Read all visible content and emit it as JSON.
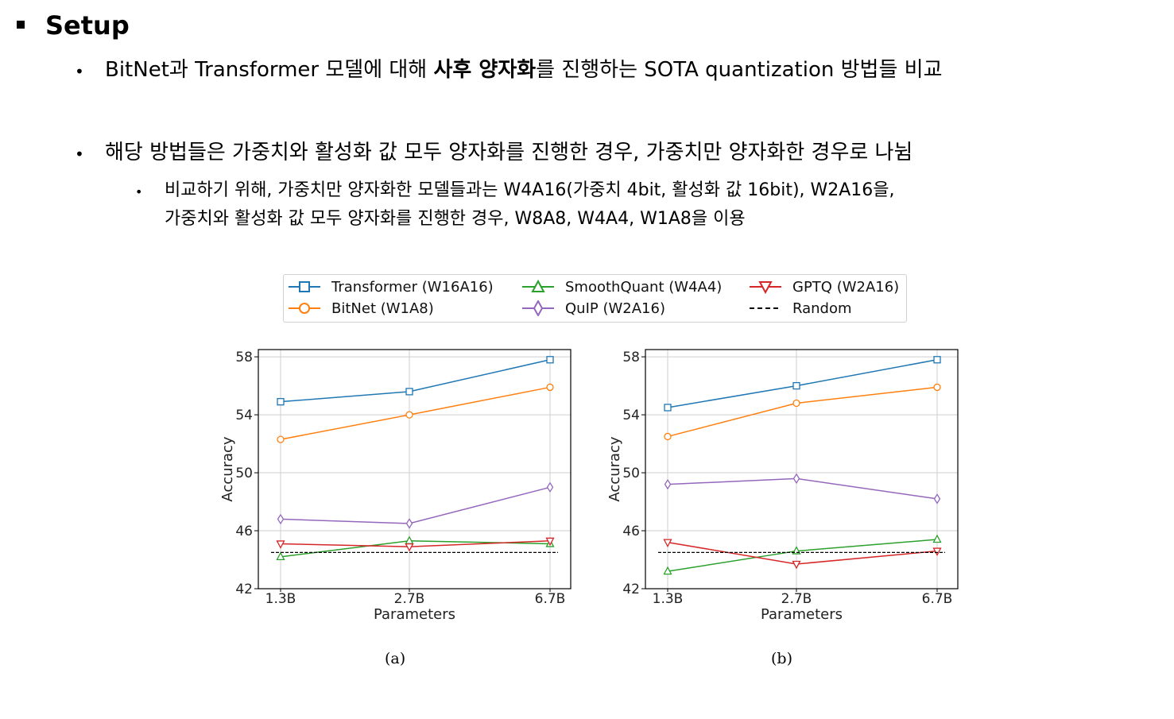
{
  "slide": {
    "heading": "Setup",
    "bullet1_pre": "BitNet과 Transformer 모델에 대해 ",
    "bullet1_bold": "사후 양자화",
    "bullet1_post": "를 진행하는 SOTA quantization 방법들 비교",
    "bullet2": "해당 방법들은 가중치와 활성화 값 모두 양자화를 진행한 경우, 가중치만 양자화한 경우로 나뉨",
    "sub_line1": "비교하기 위해, 가중치만 양자화한 모델들과는 W4A16(가중치 4bit, 활성화 값 16bit), W2A16을,",
    "sub_line2": "가중치와 활성화 값 모두 양자화를 진행한 경우, W8A8, W4A4, W1A8을 이용"
  },
  "legend": [
    {
      "label": "Transformer (W16A16)",
      "color": "#1f77b4",
      "marker": "square"
    },
    {
      "label": "BitNet (W1A8)",
      "color": "#ff7f0e",
      "marker": "circle"
    },
    {
      "label": "SmoothQuant (W4A4)",
      "color": "#2ca02c",
      "marker": "triangle-up"
    },
    {
      "label": "QuIP (W2A16)",
      "color": "#9467bd",
      "marker": "diamond"
    },
    {
      "label": "GPTQ (W2A16)",
      "color": "#d62728",
      "marker": "triangle-down"
    },
    {
      "label": "Random",
      "color": "#000000",
      "marker": "dashed"
    }
  ],
  "chart_data": [
    {
      "type": "line",
      "caption": "(a)",
      "xlabel": "Parameters",
      "ylabel": "Accuracy",
      "categories": [
        "1.3B",
        "2.7B",
        "6.7B"
      ],
      "ylim": [
        42,
        58.5
      ],
      "yticks": [
        "42",
        "46",
        "50",
        "54",
        "58"
      ],
      "grid": true,
      "series": [
        {
          "name": "Transformer (W16A16)",
          "values": [
            54.9,
            55.6,
            57.8
          ]
        },
        {
          "name": "BitNet (W1A8)",
          "values": [
            52.3,
            54.0,
            55.9
          ]
        },
        {
          "name": "SmoothQuant (W4A4)",
          "values": [
            44.2,
            45.3,
            45.1
          ]
        },
        {
          "name": "QuIP (W2A16)",
          "values": [
            46.8,
            46.5,
            49.0
          ]
        },
        {
          "name": "GPTQ (W2A16)",
          "values": [
            45.1,
            44.9,
            45.3
          ]
        },
        {
          "name": "Random",
          "values": [
            44.5,
            44.5,
            44.5
          ]
        }
      ]
    },
    {
      "type": "line",
      "caption": "(b)",
      "xlabel": "Parameters",
      "ylabel": "Accuracy",
      "categories": [
        "1.3B",
        "2.7B",
        "6.7B"
      ],
      "ylim": [
        42,
        58.5
      ],
      "yticks": [
        "42",
        "46",
        "50",
        "54",
        "58"
      ],
      "grid": true,
      "series": [
        {
          "name": "Transformer (W16A16)",
          "values": [
            54.5,
            56.0,
            57.8
          ]
        },
        {
          "name": "BitNet (W1A8)",
          "values": [
            52.5,
            54.8,
            55.9
          ]
        },
        {
          "name": "SmoothQuant (W4A4)",
          "values": [
            43.2,
            44.6,
            45.4
          ]
        },
        {
          "name": "QuIP (W2A16)",
          "values": [
            49.2,
            49.6,
            48.2
          ]
        },
        {
          "name": "GPTQ (W2A16)",
          "values": [
            45.2,
            43.7,
            44.6
          ]
        },
        {
          "name": "Random",
          "values": [
            44.5,
            44.5,
            44.5
          ]
        }
      ]
    }
  ]
}
